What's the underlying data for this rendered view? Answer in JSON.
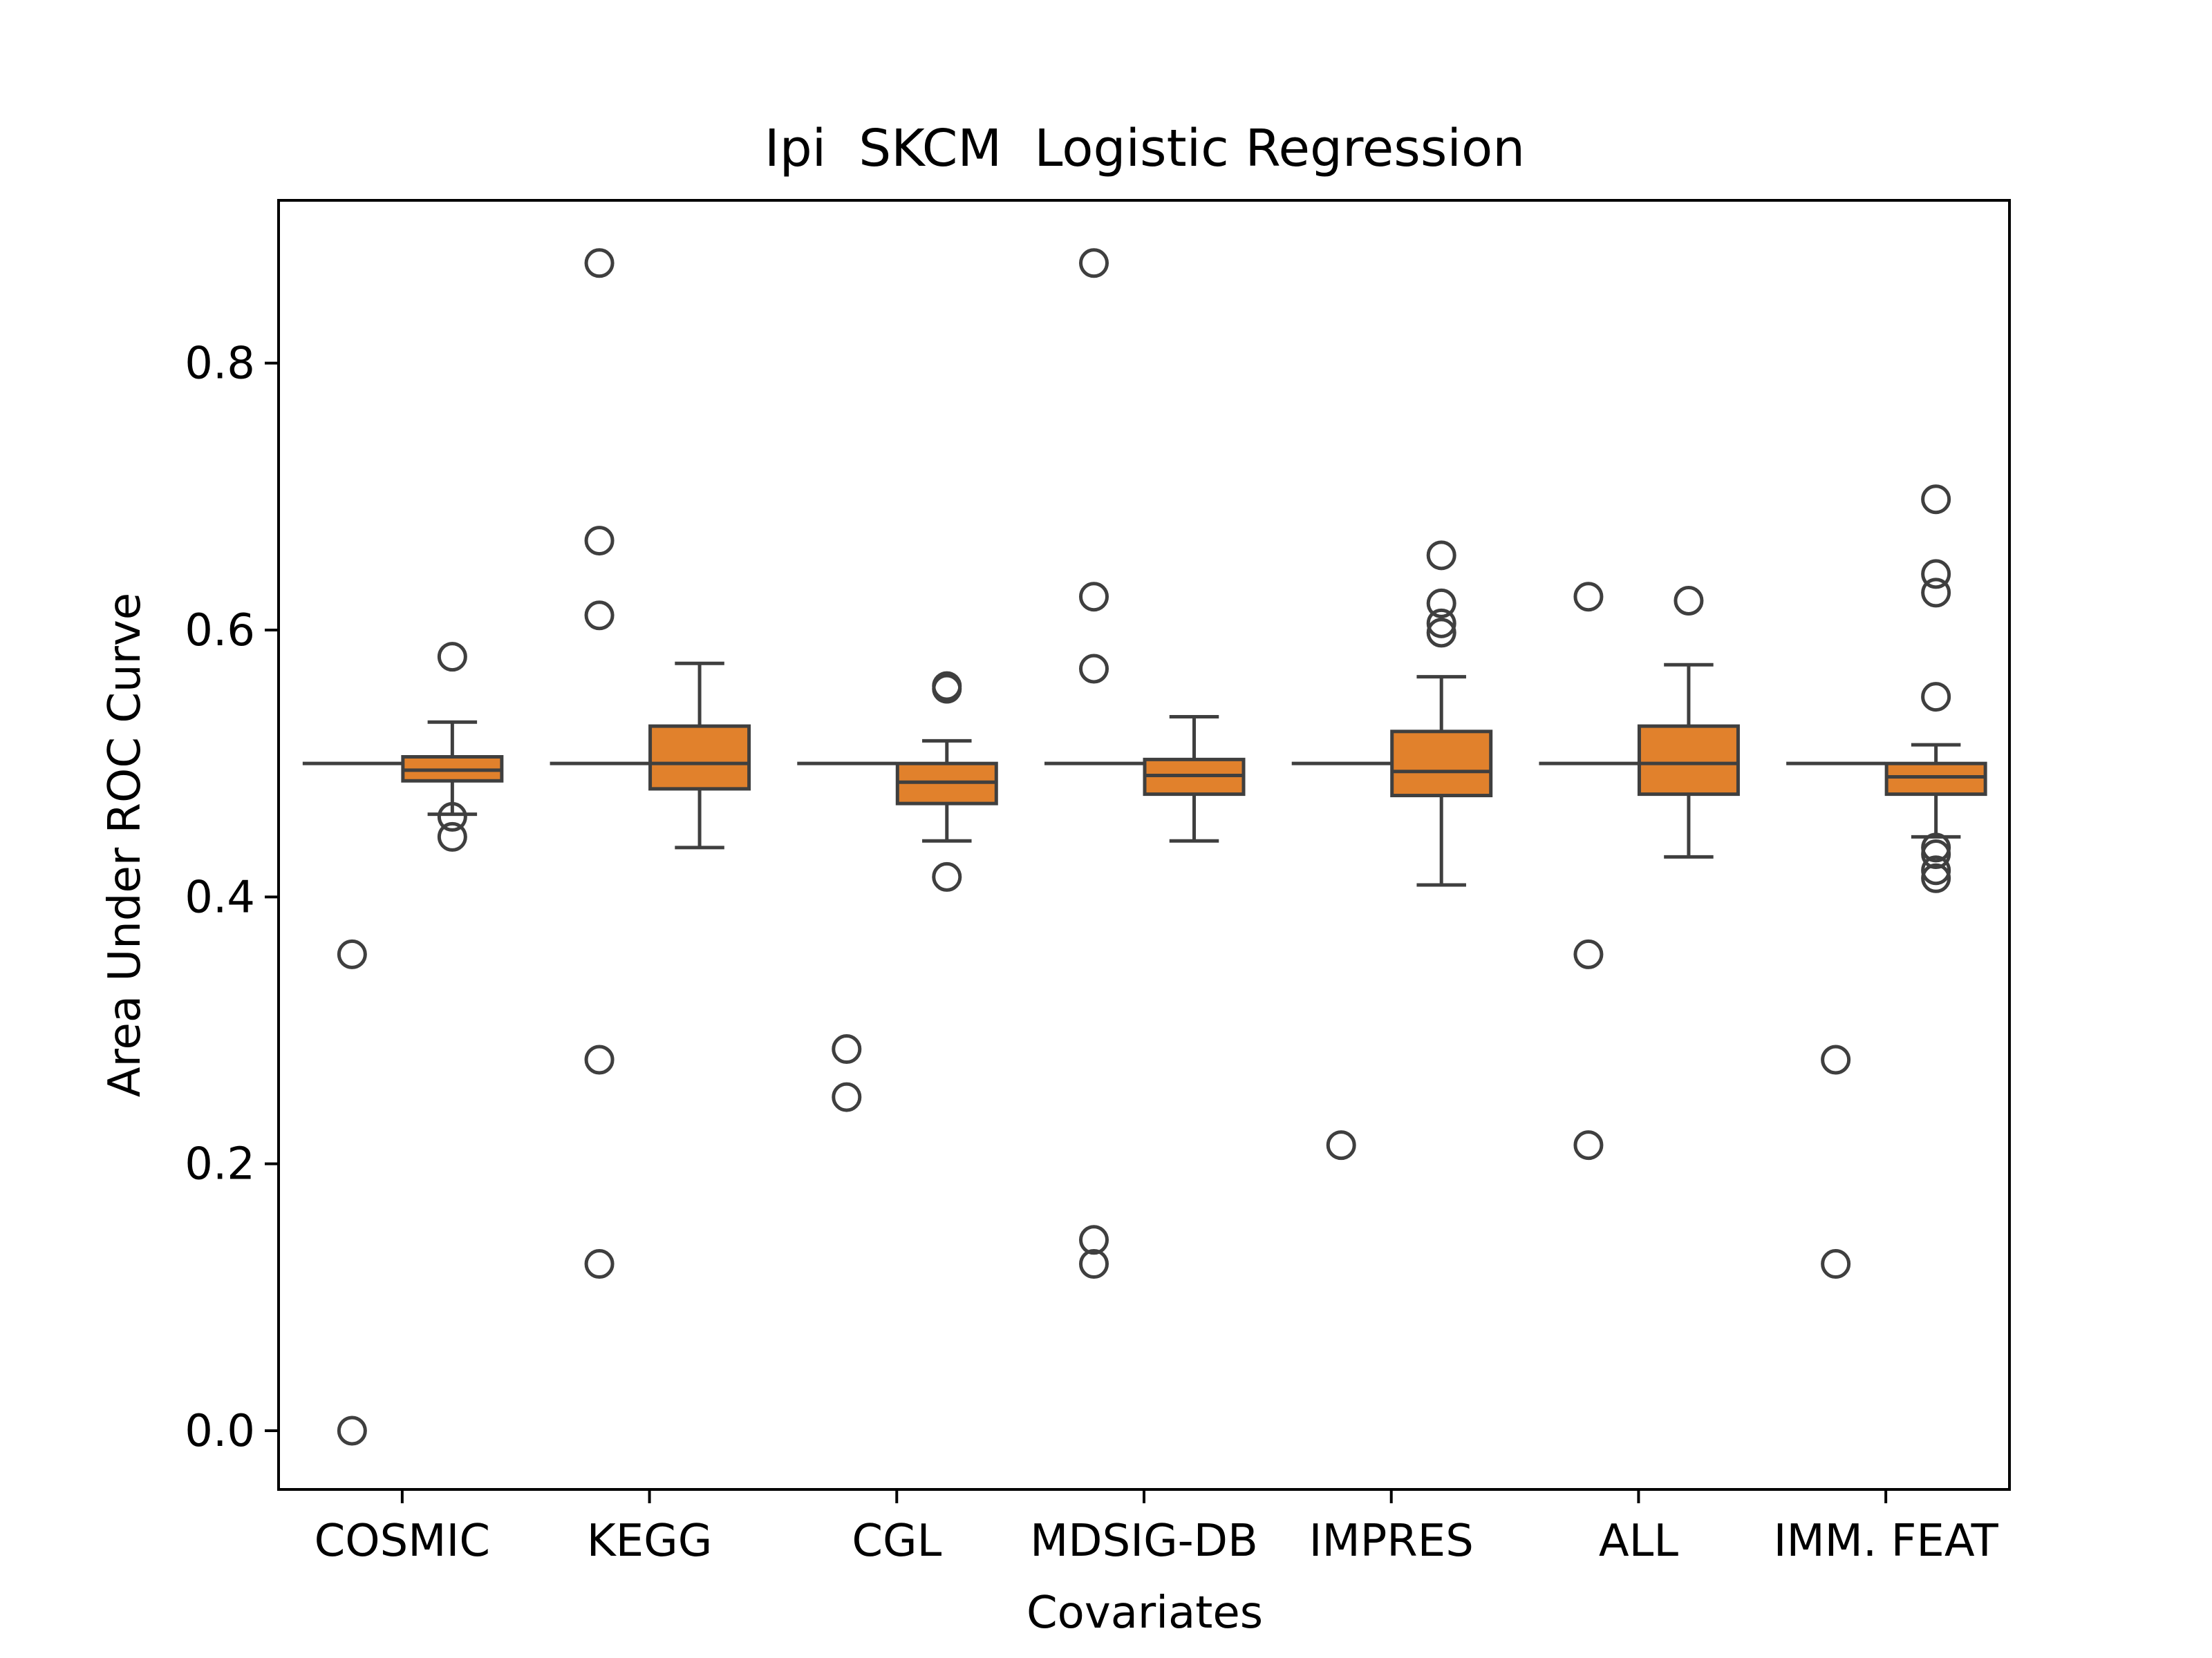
{
  "chart_data": {
    "type": "box",
    "title": "Ipi  SKCM  Logistic Regression",
    "xlabel": "Covariates",
    "ylabel": "Area Under ROC Curve",
    "ylim": [
      -0.044,
      0.922
    ],
    "yticks": [
      "0.0",
      "0.2",
      "0.4",
      "0.6",
      "0.8"
    ],
    "categories": [
      "COSMIC",
      "KEGG",
      "CGL",
      "MDSIG-DB",
      "IMPRES",
      "ALL",
      "IMM. FEAT"
    ],
    "colors": {
      "box_fill": "#E1812C",
      "line": "#3F3F3F",
      "baseline_fill": "#3274A1"
    },
    "groups": [
      {
        "category": "COSMIC",
        "baseline": {
          "q1": 0.5,
          "median": 0.5,
          "q3": 0.5,
          "whisker_low": 0.5,
          "whisker_high": 0.5,
          "outliers": [
            0.357,
            0.0
          ]
        },
        "model": {
          "q1": 0.487,
          "median": 0.495,
          "q3": 0.505,
          "whisker_low": 0.462,
          "whisker_high": 0.531,
          "outliers": [
            0.58,
            0.46,
            0.445
          ]
        }
      },
      {
        "category": "KEGG",
        "baseline": {
          "q1": 0.5,
          "median": 0.5,
          "q3": 0.5,
          "whisker_low": 0.5,
          "whisker_high": 0.5,
          "outliers": [
            0.875,
            0.667,
            0.611,
            0.278,
            0.125
          ]
        },
        "model": {
          "q1": 0.481,
          "median": 0.5,
          "q3": 0.528,
          "whisker_low": 0.437,
          "whisker_high": 0.575,
          "outliers": []
        }
      },
      {
        "category": "CGL",
        "baseline": {
          "q1": 0.5,
          "median": 0.5,
          "q3": 0.5,
          "whisker_low": 0.5,
          "whisker_high": 0.5,
          "outliers": [
            0.286,
            0.25
          ]
        },
        "model": {
          "q1": 0.47,
          "median": 0.486,
          "q3": 0.5,
          "whisker_low": 0.442,
          "whisker_high": 0.517,
          "outliers": [
            0.558,
            0.556,
            0.415
          ]
        }
      },
      {
        "category": "MDSIG-DB",
        "baseline": {
          "q1": 0.5,
          "median": 0.5,
          "q3": 0.5,
          "whisker_low": 0.5,
          "whisker_high": 0.5,
          "outliers": [
            0.875,
            0.625,
            0.571,
            0.143,
            0.125
          ]
        },
        "model": {
          "q1": 0.477,
          "median": 0.491,
          "q3": 0.503,
          "whisker_low": 0.442,
          "whisker_high": 0.535,
          "outliers": []
        }
      },
      {
        "category": "IMPRES",
        "baseline": {
          "q1": 0.5,
          "median": 0.5,
          "q3": 0.5,
          "whisker_low": 0.5,
          "whisker_high": 0.5,
          "outliers": [
            0.214
          ]
        },
        "model": {
          "q1": 0.476,
          "median": 0.494,
          "q3": 0.524,
          "whisker_low": 0.409,
          "whisker_high": 0.565,
          "outliers": [
            0.656,
            0.62,
            0.605,
            0.598
          ]
        }
      },
      {
        "category": "ALL",
        "baseline": {
          "q1": 0.5,
          "median": 0.5,
          "q3": 0.5,
          "whisker_low": 0.5,
          "whisker_high": 0.5,
          "outliers": [
            0.625,
            0.357,
            0.214
          ]
        },
        "model": {
          "q1": 0.477,
          "median": 0.5,
          "q3": 0.528,
          "whisker_low": 0.43,
          "whisker_high": 0.574,
          "outliers": [
            0.622
          ]
        }
      },
      {
        "category": "IMM. FEAT",
        "baseline": {
          "q1": 0.5,
          "median": 0.5,
          "q3": 0.5,
          "whisker_low": 0.5,
          "whisker_high": 0.5,
          "outliers": [
            0.278,
            0.125
          ]
        },
        "model": {
          "q1": 0.477,
          "median": 0.49,
          "q3": 0.5,
          "whisker_low": 0.445,
          "whisker_high": 0.514,
          "outliers": [
            0.698,
            0.642,
            0.628,
            0.55,
            0.437,
            0.432,
            0.42,
            0.414
          ]
        }
      }
    ],
    "grid": false,
    "legend": "none"
  }
}
